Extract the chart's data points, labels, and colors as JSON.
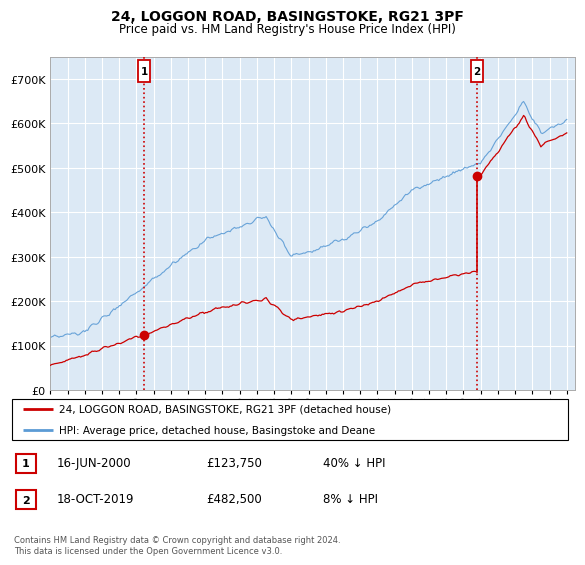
{
  "title": "24, LOGGON ROAD, BASINGSTOKE, RG21 3PF",
  "subtitle": "Price paid vs. HM Land Registry's House Price Index (HPI)",
  "hpi_color": "#5b9bd5",
  "price_color": "#cc0000",
  "plot_bg_color": "#dce9f5",
  "marker1_x": 2000.46,
  "marker2_x": 2019.79,
  "marker1_y": 123750,
  "marker2_y": 482500,
  "legend_entries": [
    "24, LOGGON ROAD, BASINGSTOKE, RG21 3PF (detached house)",
    "HPI: Average price, detached house, Basingstoke and Deane"
  ],
  "table_rows": [
    [
      "1",
      "16-JUN-2000",
      "£123,750",
      "40% ↓ HPI"
    ],
    [
      "2",
      "18-OCT-2019",
      "£482,500",
      "8% ↓ HPI"
    ]
  ],
  "footnote": "Contains HM Land Registry data © Crown copyright and database right 2024.\nThis data is licensed under the Open Government Licence v3.0.",
  "ylim": [
    0,
    750000
  ],
  "yticks": [
    0,
    100000,
    200000,
    300000,
    400000,
    500000,
    600000,
    700000
  ],
  "xmin": 1995,
  "xmax": 2025.5
}
